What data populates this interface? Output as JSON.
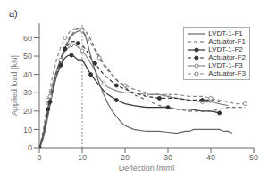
{
  "chart_data": {
    "type": "line",
    "title": "a)",
    "x_label": "Deflection [mm]",
    "y_label": "Applied load [kN]",
    "xlim": [
      0,
      50
    ],
    "ylim": [
      0,
      68
    ],
    "xticks": [
      0,
      10,
      20,
      30,
      40,
      50
    ],
    "yticks": [
      0,
      10,
      20,
      30,
      40,
      50,
      60
    ],
    "vline": 10,
    "grid": false,
    "legend": "upper right",
    "series": [
      {
        "name": "LVDT-1-F1",
        "color": "#666666",
        "line_style": "solid",
        "marker": "none",
        "x": [
          0,
          0.3,
          0.6,
          1,
          1.5,
          2,
          2.5,
          3,
          3.5,
          4,
          4.5,
          5,
          5.5,
          6,
          6.5,
          7,
          7.5,
          8,
          8.5,
          9,
          9.5,
          10,
          10.5,
          11,
          12,
          13,
          14,
          15,
          16,
          17,
          18,
          19,
          20,
          22,
          25,
          28,
          30,
          32,
          34,
          35,
          36,
          38,
          39,
          40,
          41,
          42,
          43,
          44,
          45
        ],
        "values": [
          0,
          1,
          3,
          6,
          11,
          17,
          23,
          29,
          34,
          39,
          43,
          47,
          51,
          54,
          57,
          59,
          61,
          62,
          63,
          63.5,
          64,
          64,
          62,
          59,
          50,
          42,
          35,
          29,
          24,
          20,
          17,
          14,
          12,
          10,
          9,
          9,
          8.5,
          8,
          9,
          9,
          10,
          10,
          10,
          10,
          10,
          10,
          9,
          9,
          8
        ]
      },
      {
        "name": "Actuator-F1",
        "color": "#666666",
        "line_style": "dashed",
        "marker": "none",
        "x": [
          0,
          0.3,
          0.6,
          1,
          1.5,
          2,
          2.5,
          3,
          3.5,
          4,
          4.5,
          5,
          5.5,
          6,
          6.5,
          7,
          7.5,
          8,
          8.5,
          9,
          9.5,
          10,
          11,
          12,
          13,
          14,
          15,
          16,
          17,
          18,
          19,
          20,
          22,
          25,
          28,
          30,
          32,
          35,
          38,
          40,
          42,
          44,
          46,
          48
        ],
        "values": [
          0,
          1,
          3,
          7,
          12,
          18,
          24,
          30,
          35,
          40,
          44,
          48,
          52,
          55,
          57.5,
          60,
          61.5,
          63,
          64,
          65,
          65.5,
          65.5,
          63,
          59,
          54,
          50,
          46,
          43,
          40,
          37,
          35,
          33,
          29,
          26,
          23,
          22,
          21,
          20,
          20,
          20,
          21,
          22,
          22,
          22
        ]
      },
      {
        "name": "LVDT-1-F2",
        "color": "#333333",
        "line_style": "solid",
        "marker": "circle",
        "x": [
          0,
          0.5,
          1,
          1.5,
          2,
          2.5,
          3,
          3.5,
          4,
          4.5,
          5,
          5.5,
          6,
          6.5,
          7,
          7.5,
          8,
          9,
          10,
          11,
          12,
          13,
          14,
          15,
          16,
          18,
          20,
          22,
          25,
          28,
          30,
          32,
          35,
          38,
          40,
          42
        ],
        "values": [
          0,
          3,
          7,
          13,
          19,
          25,
          30,
          35,
          39,
          42,
          45,
          47.5,
          49,
          50,
          50.5,
          50.5,
          50,
          48,
          48,
          44,
          40,
          37,
          34,
          31,
          29,
          26,
          24,
          23,
          22,
          22,
          22,
          21,
          21,
          20,
          20,
          19
        ]
      },
      {
        "name": "Actuator-F2",
        "color": "#333333",
        "line_style": "dashed",
        "marker": "circle",
        "x": [
          0,
          0.5,
          1,
          1.5,
          2,
          3,
          4,
          5,
          6,
          7,
          7.5,
          8,
          9,
          10,
          11,
          12,
          13,
          14,
          15,
          16,
          18,
          20,
          22,
          25,
          28,
          30,
          32,
          35,
          38,
          40,
          42
        ],
        "values": [
          0,
          3,
          8,
          14,
          21,
          32,
          41,
          49,
          54,
          57,
          58,
          58,
          57,
          56,
          53,
          49,
          46,
          43,
          40,
          38,
          34,
          32,
          30,
          28,
          27,
          27,
          27,
          26,
          26,
          26,
          25
        ]
      },
      {
        "name": "LVDT-1-F3",
        "color": "#888888",
        "line_style": "solid",
        "marker": "open_circle",
        "x": [
          0,
          0.5,
          1,
          1.5,
          2,
          2.5,
          3,
          3.5,
          4,
          4.5,
          5,
          5.5,
          6,
          6.5,
          7,
          7.5,
          8,
          8.5,
          9,
          9.5,
          10,
          11,
          12,
          13,
          14,
          15,
          16,
          18,
          20,
          22,
          25,
          28,
          30,
          32,
          35,
          38,
          40,
          42,
          44
        ],
        "values": [
          0,
          4,
          9,
          15,
          22,
          28,
          34,
          38,
          42,
          45.5,
          48,
          50.5,
          52.5,
          54,
          55,
          56,
          56.5,
          56,
          55,
          54,
          53,
          50,
          46,
          42,
          38,
          35,
          33,
          31,
          30,
          30,
          29,
          29,
          28,
          27,
          26,
          25,
          25,
          24,
          23
        ]
      },
      {
        "name": "Actuator-F3",
        "color": "#888888",
        "line_style": "dashed",
        "marker": "open_circle",
        "x": [
          0,
          0.5,
          1,
          1.5,
          2,
          3,
          4,
          5,
          6,
          7,
          8,
          9,
          10,
          11,
          12,
          13,
          14,
          15,
          16,
          18,
          20,
          22,
          25,
          28,
          30,
          32,
          35,
          38,
          40,
          42,
          44,
          46,
          48
        ],
        "values": [
          0,
          5,
          11,
          18,
          26,
          38,
          48,
          55,
          60,
          63,
          64.5,
          65,
          64,
          61,
          57,
          53,
          49,
          45,
          42,
          37,
          34,
          32,
          30,
          29,
          29,
          29,
          28,
          28,
          27,
          26,
          25,
          24,
          24
        ]
      }
    ]
  }
}
